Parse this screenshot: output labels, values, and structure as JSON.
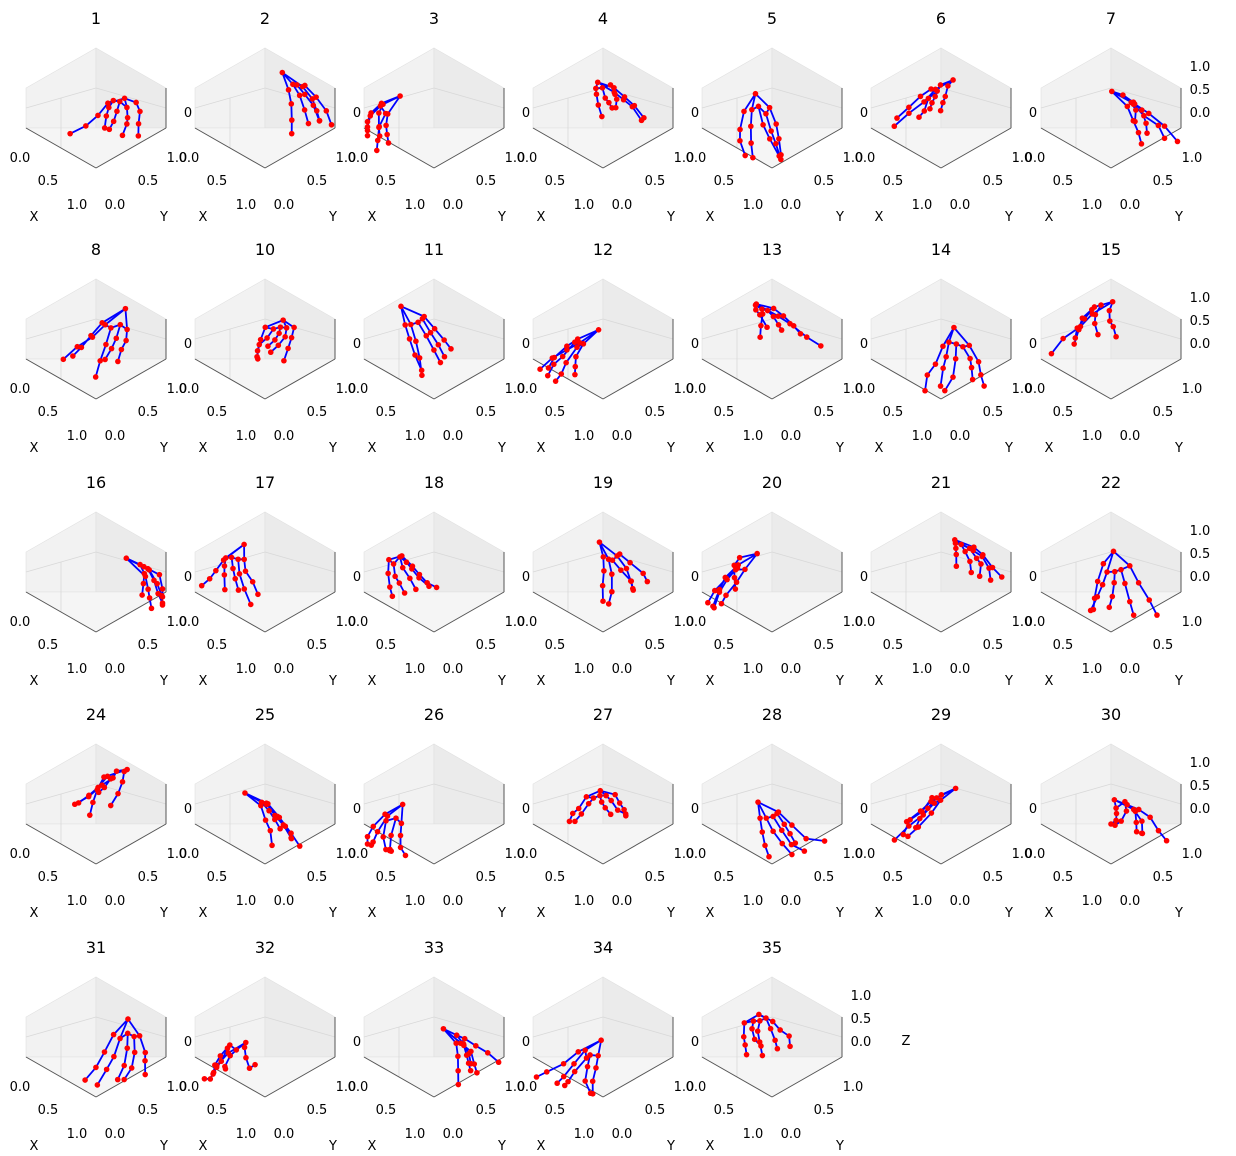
{
  "chart_data": {
    "type": "scatter",
    "projection": "3d",
    "description_of_marks": "hand skeleton: 21 red keypoints joined by blue bone lines",
    "axis_labels": {
      "x": "X",
      "y": "Y",
      "z": "Z"
    },
    "axis_ticks": {
      "x": [
        "0.0",
        "0.5",
        "1.0"
      ],
      "y": [
        "0.0",
        "0.5",
        "1.0"
      ],
      "z": [
        "0.0",
        "0.5",
        "1.0"
      ]
    },
    "xlim": [
      0,
      1
    ],
    "ylim": [
      0,
      1
    ],
    "zlim": [
      0,
      1
    ],
    "panel_titles": [
      "1",
      "2",
      "3",
      "4",
      "5",
      "6",
      "7",
      "8",
      "10",
      "11",
      "12",
      "13",
      "14",
      "15",
      "16",
      "17",
      "18",
      "19",
      "20",
      "21",
      "22",
      "24",
      "25",
      "26",
      "27",
      "28",
      "29",
      "30",
      "31",
      "32",
      "33",
      "34",
      "35"
    ],
    "z_label_shown_on": [
      "35"
    ],
    "colors": {
      "points": "#ff0000",
      "bones": "#0000ff",
      "pane_left": "#f2f2f2",
      "pane_right": "#ebebeb",
      "pane_floor": "#f5f5f5",
      "grid": "#d8d8d8"
    }
  }
}
